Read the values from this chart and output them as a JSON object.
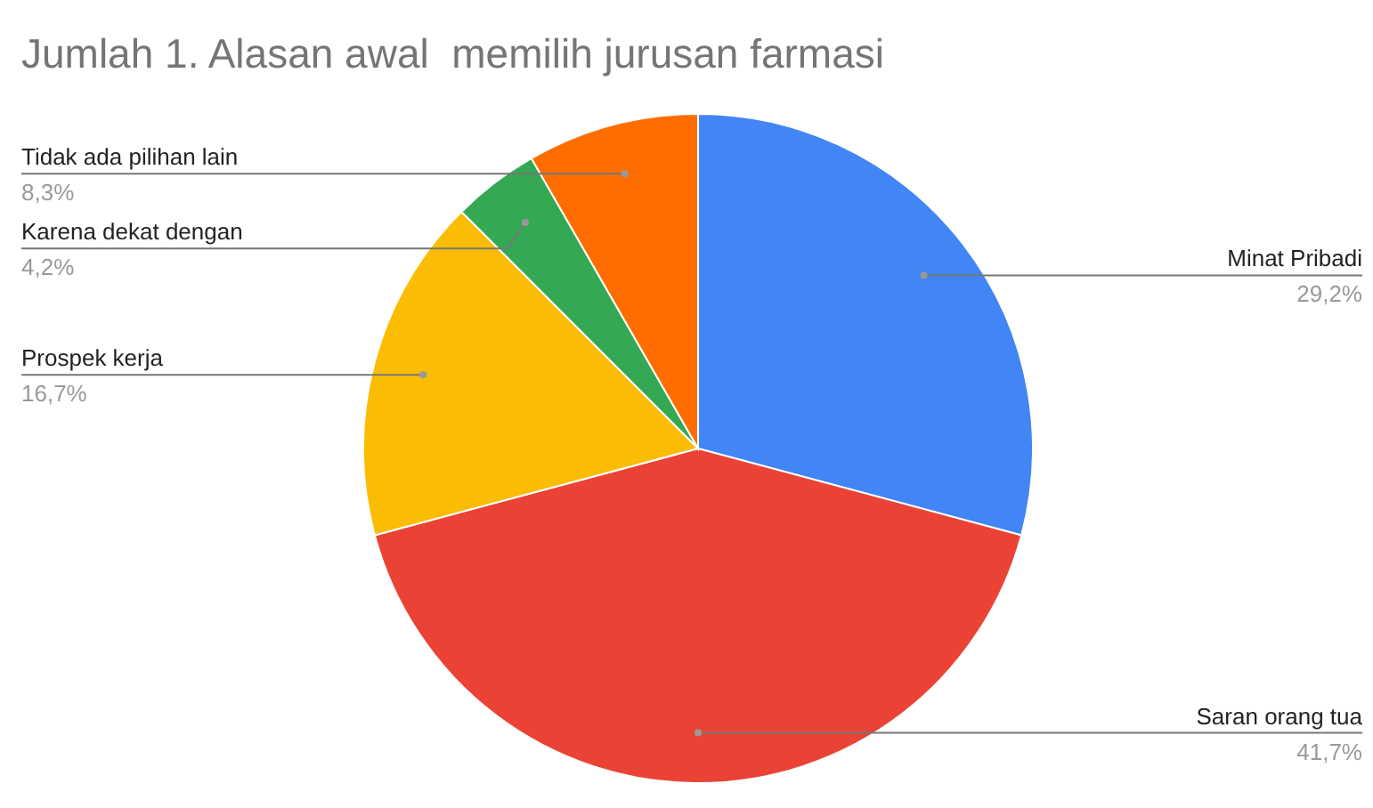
{
  "chart_data": {
    "type": "pie",
    "title": "Jumlah 1. Alasan awal  memilih jurusan farmasi",
    "categories": [
      "Minat Pribadi",
      "Saran orang tua",
      "Prospek kerja",
      "Karena dekat dengan",
      "Tidak ada pilihan lain"
    ],
    "values": [
      29.2,
      41.7,
      16.7,
      4.2,
      8.3
    ],
    "colors": [
      "#4285f4",
      "#ea4335",
      "#fbbc04",
      "#34a853",
      "#ff6d01"
    ],
    "value_labels": [
      "29,2%",
      "41,7%",
      "16,7%",
      "4,2%",
      "8,3%"
    ]
  }
}
